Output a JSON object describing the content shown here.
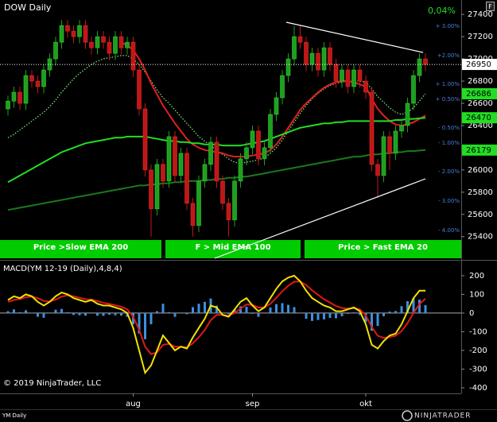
{
  "chart_data": [
    {
      "type": "candlestick",
      "title": "DOW Daily",
      "change_label": "0,04%",
      "categories": [
        null,
        null,
        null,
        null,
        null,
        null,
        null,
        null,
        null,
        null,
        null,
        null,
        null,
        null,
        null,
        null,
        null,
        null,
        null,
        null,
        null,
        "aug",
        null,
        null,
        null,
        null,
        null,
        null,
        null,
        null,
        null,
        null,
        null,
        null,
        null,
        null,
        null,
        null,
        null,
        null,
        null,
        "sep",
        null,
        null,
        null,
        null,
        null,
        null,
        null,
        null,
        null,
        null,
        null,
        null,
        null,
        null,
        null,
        null,
        null,
        null,
        "okt",
        null,
        null,
        null,
        null,
        null,
        null,
        null,
        null,
        null,
        null
      ],
      "open": [
        26550,
        26620,
        26700,
        26600,
        26850,
        26800,
        26750,
        26900,
        27000,
        27150,
        27300,
        27250,
        27200,
        27300,
        27150,
        27100,
        27200,
        27150,
        27050,
        27200,
        27100,
        27150,
        26900,
        26550,
        26000,
        25650,
        26050,
        25900,
        26300,
        25950,
        26150,
        25700,
        25500,
        25900,
        26050,
        26250,
        25900,
        25700,
        25550,
        25900,
        26100,
        26200,
        26350,
        26100,
        26200,
        26500,
        26650,
        26850,
        27000,
        27200,
        27150,
        26950,
        27050,
        26900,
        27100,
        26950,
        26800,
        26900,
        26750,
        26900,
        26800,
        26700,
        26050,
        25950,
        26300,
        26150,
        26350,
        26400,
        26600,
        26850,
        27000
      ],
      "high": [
        26670,
        26750,
        26750,
        26900,
        26900,
        26850,
        26950,
        27050,
        27200,
        27350,
        27350,
        27300,
        27350,
        27350,
        27200,
        27250,
        27250,
        27200,
        27250,
        27250,
        27200,
        27200,
        26950,
        26600,
        26050,
        26100,
        26100,
        26350,
        26350,
        26200,
        26200,
        25750,
        25950,
        26100,
        26300,
        26300,
        25950,
        25750,
        25950,
        26150,
        26250,
        26400,
        26400,
        26250,
        26550,
        26700,
        26900,
        27050,
        27300,
        27300,
        27200,
        27100,
        27100,
        27150,
        27150,
        27000,
        26950,
        26950,
        26950,
        26950,
        26850,
        26750,
        26100,
        26350,
        26350,
        26400,
        26450,
        26650,
        26900,
        27050,
        27050
      ],
      "low": [
        26490,
        26560,
        26540,
        26540,
        26740,
        26690,
        26690,
        26840,
        26940,
        27090,
        27190,
        27140,
        27140,
        27090,
        27040,
        27040,
        27090,
        26990,
        26990,
        27040,
        27040,
        26840,
        26490,
        25940,
        25400,
        25590,
        25840,
        25840,
        25890,
        25890,
        25640,
        25400,
        25440,
        25840,
        25990,
        25840,
        25640,
        25400,
        25490,
        25840,
        26040,
        26140,
        26040,
        26040,
        26140,
        26440,
        26590,
        26790,
        26940,
        27090,
        26890,
        26890,
        26840,
        26840,
        26890,
        26740,
        26740,
        26690,
        26690,
        26740,
        26640,
        25990,
        25750,
        25890,
        26000,
        26090,
        26290,
        26340,
        26540,
        26790,
        26890
      ],
      "close": [
        26620,
        26700,
        26600,
        26850,
        26800,
        26750,
        26900,
        27000,
        27150,
        27300,
        27250,
        27200,
        27300,
        27150,
        27100,
        27200,
        27150,
        27050,
        27200,
        27100,
        27150,
        26900,
        26550,
        26000,
        25650,
        26050,
        25900,
        26300,
        25950,
        26150,
        25700,
        25500,
        25900,
        26050,
        26250,
        25900,
        25700,
        25550,
        25900,
        26100,
        26200,
        26350,
        26100,
        26200,
        26500,
        26650,
        26850,
        27000,
        27200,
        27150,
        26950,
        27050,
        26900,
        27100,
        26950,
        26800,
        26900,
        26750,
        26900,
        26800,
        26700,
        26050,
        25950,
        26300,
        26150,
        26350,
        26400,
        26600,
        26850,
        27000,
        26950
      ],
      "up_color": "#1f9e1f",
      "down_color": "#c01616",
      "last_price_color": "#ffffff",
      "series": [
        {
          "color": "#7ee07e",
          "style": "dotted",
          "tagged": true,
          "values": [
            26290,
            26320,
            26360,
            26400,
            26440,
            26480,
            26520,
            26570,
            26630,
            26700,
            26760,
            26820,
            26870,
            26910,
            26950,
            26980,
            27000,
            27010,
            27020,
            27030,
            27030,
            27000,
            26950,
            26880,
            26800,
            26720,
            26650,
            26600,
            26540,
            26480,
            26420,
            26360,
            26300,
            26260,
            26220,
            26180,
            26140,
            26100,
            26070,
            26060,
            26070,
            26080,
            26090,
            26110,
            26150,
            26200,
            26270,
            26350,
            26430,
            26510,
            26580,
            26640,
            26690,
            26730,
            26760,
            26780,
            26790,
            26800,
            26800,
            26800,
            26790,
            26730,
            26660,
            26610,
            26560,
            26520,
            26500,
            26520,
            26560,
            26620,
            26686
          ]
        },
        {
          "color": "#e02020",
          "style": "solid",
          "tagged": false,
          "values": [
            null,
            null,
            null,
            null,
            null,
            null,
            null,
            null,
            null,
            null,
            null,
            null,
            null,
            null,
            null,
            null,
            null,
            null,
            null,
            27150,
            27120,
            27080,
            27000,
            26900,
            26780,
            26680,
            26580,
            26500,
            26420,
            26350,
            26280,
            26230,
            26200,
            26180,
            26170,
            26160,
            26150,
            26130,
            26120,
            26120,
            26120,
            26130,
            26140,
            26150,
            26180,
            26230,
            26300,
            26380,
            26460,
            26540,
            26600,
            26650,
            26700,
            26740,
            26770,
            26790,
            26800,
            26800,
            26790,
            26770,
            26750,
            26640,
            26550,
            26490,
            26440,
            26410,
            26400,
            26410,
            26430,
            26460,
            26490
          ]
        },
        {
          "color": "#22dd22",
          "style": "solid",
          "tagged": true,
          "values": [
            25890,
            25920,
            25950,
            25980,
            26010,
            26040,
            26070,
            26100,
            26130,
            26160,
            26180,
            26200,
            26220,
            26240,
            26250,
            26260,
            26270,
            26280,
            26290,
            26290,
            26300,
            26300,
            26300,
            26300,
            26290,
            26280,
            26270,
            26260,
            26260,
            26250,
            26250,
            26240,
            26240,
            26230,
            26230,
            26230,
            26220,
            26220,
            26220,
            26220,
            26230,
            26240,
            26250,
            26260,
            26280,
            26300,
            26320,
            26340,
            26360,
            26380,
            26390,
            26400,
            26410,
            26420,
            26420,
            26430,
            26430,
            26440,
            26440,
            26440,
            26440,
            26440,
            26440,
            26440,
            26440,
            26450,
            26450,
            26460,
            26460,
            26465,
            26470
          ]
        },
        {
          "color": "#1b7a1b",
          "style": "solid",
          "tagged": true,
          "values": [
            25640,
            25650,
            25660,
            25670,
            25680,
            25690,
            25700,
            25710,
            25720,
            25730,
            25740,
            25750,
            25760,
            25770,
            25780,
            25790,
            25800,
            25810,
            25820,
            25830,
            25840,
            25850,
            25860,
            25860,
            25870,
            25870,
            25880,
            25880,
            25890,
            25890,
            25900,
            25900,
            25900,
            25910,
            25910,
            25920,
            25920,
            25930,
            25930,
            25940,
            25940,
            25950,
            25960,
            25970,
            25980,
            25990,
            26000,
            26010,
            26020,
            26030,
            26040,
            26050,
            26060,
            26070,
            26080,
            26090,
            26100,
            26110,
            26120,
            26120,
            26130,
            26140,
            26140,
            26150,
            26150,
            26160,
            26160,
            26170,
            26170,
            26175,
            26179
          ]
        }
      ],
      "tag_color": "#22dd22",
      "ylim": [
        25205,
        27530
      ],
      "yticks": [
        25400,
        25600,
        25800,
        26000,
        26200,
        26400,
        26600,
        26800,
        27000,
        27200,
        27400
      ],
      "grid": false,
      "percent_labels": [
        "+ 3.00%",
        "+2.00%",
        "+ 1.00%",
        "+ 0.50%",
        "- 0.50%",
        "- 1.00%",
        "- 2.00%",
        "- 3.00%",
        "- 4.00%"
      ],
      "percent_color": "#4a7fd8",
      "signals": [
        "Price >Slow EMA 200",
        "F > Mid EMA 100",
        "Price > Fast EMA 20"
      ],
      "signal_color": "#00cc00"
    },
    {
      "type": "macd",
      "title": "MACD(YM 12-19 (Daily),4,8,4)",
      "series": [
        {
          "color": "#f2e200",
          "values": [
            70,
            90,
            80,
            100,
            90,
            60,
            40,
            60,
            90,
            110,
            100,
            80,
            70,
            60,
            70,
            50,
            40,
            40,
            30,
            20,
            0,
            -80,
            -200,
            -320,
            -280,
            -200,
            -120,
            -160,
            -200,
            -180,
            -190,
            -130,
            -80,
            -30,
            40,
            30,
            -10,
            -20,
            20,
            60,
            80,
            40,
            10,
            30,
            80,
            130,
            170,
            190,
            200,
            170,
            120,
            80,
            60,
            40,
            30,
            10,
            10,
            20,
            30,
            10,
            -60,
            -170,
            -190,
            -150,
            -120,
            -110,
            -60,
            10,
            80,
            120,
            120
          ]
        },
        {
          "color": "#e01818",
          "values": [
            60,
            70,
            75,
            85,
            88,
            80,
            65,
            62,
            72,
            88,
            95,
            90,
            82,
            74,
            72,
            64,
            55,
            49,
            42,
            34,
            20,
            -20,
            -90,
            -180,
            -220,
            -210,
            -170,
            -165,
            -180,
            -180,
            -184,
            -162,
            -130,
            -90,
            -38,
            -10,
            -10,
            -14,
            0,
            24,
            46,
            44,
            30,
            30,
            50,
            82,
            117,
            146,
            168,
            169,
            150,
            122,
            97,
            74,
            56,
            38,
            27,
            24,
            26,
            20,
            -12,
            -75,
            -121,
            -133,
            -128,
            -121,
            -97,
            -54,
            0,
            48,
            77
          ]
        }
      ],
      "histogram": {
        "color": "#3d8fe0",
        "values": [
          10,
          20,
          5,
          15,
          2,
          -20,
          -25,
          -2,
          18,
          22,
          5,
          -10,
          -12,
          -14,
          -2,
          -14,
          -15,
          -9,
          -12,
          -14,
          -20,
          -60,
          -110,
          -140,
          -60,
          10,
          50,
          5,
          -20,
          0,
          -6,
          32,
          50,
          60,
          78,
          40,
          0,
          -6,
          20,
          36,
          34,
          -4,
          -20,
          0,
          30,
          48,
          53,
          44,
          32,
          1,
          -30,
          -42,
          -37,
          -34,
          -26,
          -28,
          -17,
          -4,
          4,
          -10,
          -48,
          -95,
          -69,
          -17,
          8,
          11,
          37,
          64,
          80,
          72,
          43
        ]
      },
      "ylim": [
        -430,
        272
      ],
      "yticks": [
        200,
        100,
        0,
        -100,
        -200,
        -300,
        -400
      ],
      "zero_line": true
    }
  ],
  "footer": {
    "copyright": "© 2019 NinjaTrader, LLC",
    "instrument": "YM Daily",
    "logo": "NINJATRADER"
  }
}
